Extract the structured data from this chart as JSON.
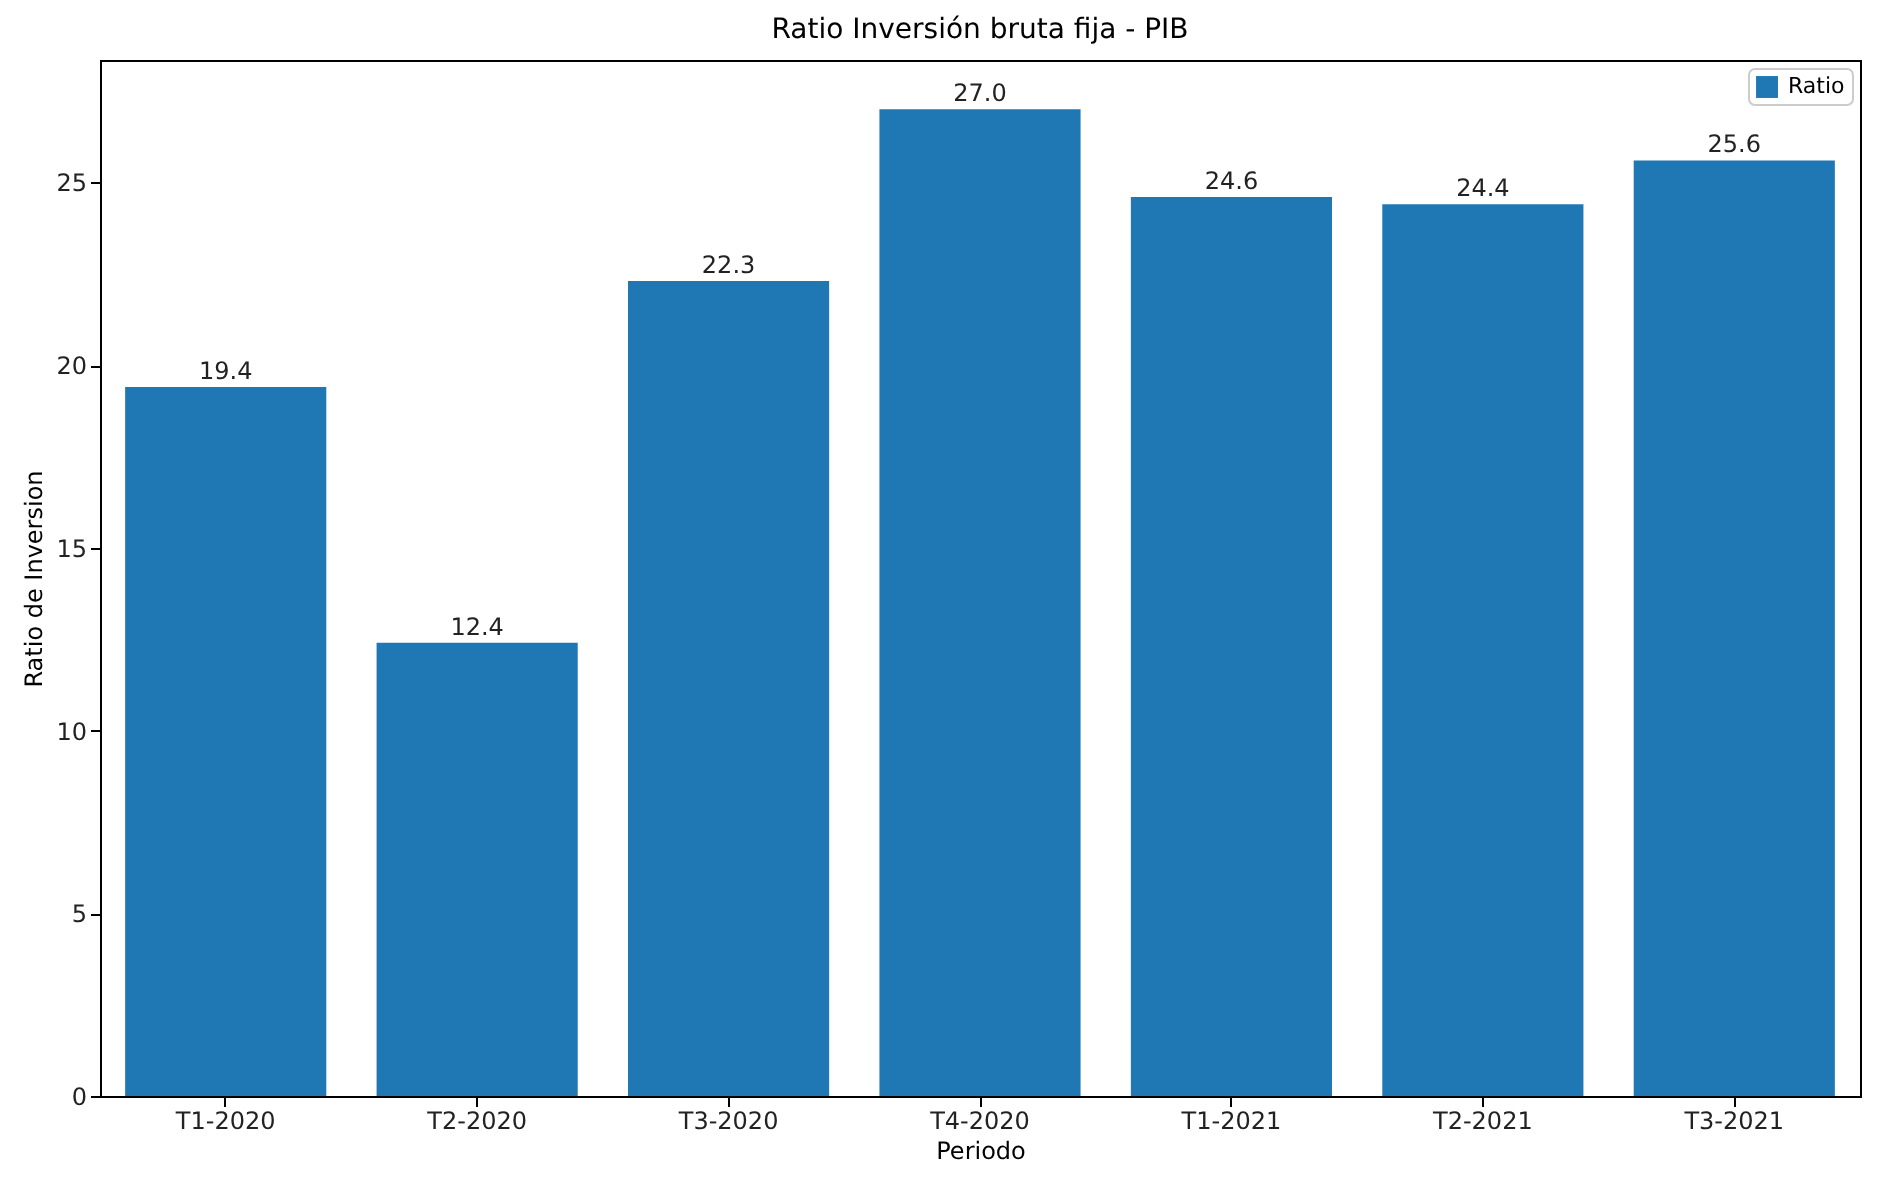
{
  "chart_data": {
    "type": "bar",
    "title": "Ratio Inversión bruta fija - PIB",
    "xlabel": "Periodo",
    "ylabel": "Ratio de Inversion",
    "categories": [
      "T1-2020",
      "T2-2020",
      "T3-2020",
      "T4-2020",
      "T1-2021",
      "T2-2021",
      "T3-2021"
    ],
    "series": [
      {
        "name": "Ratio",
        "color": "#1f77b4",
        "values": [
          19.4,
          12.4,
          22.3,
          27.0,
          24.6,
          24.4,
          25.6
        ],
        "value_labels": [
          "19.4",
          "12.4",
          "22.3",
          "27.0",
          "24.6",
          "24.4",
          "25.6"
        ]
      }
    ],
    "ylim": [
      0,
      28.35
    ],
    "yticks": [
      0,
      5,
      10,
      15,
      20,
      25
    ],
    "grid": false,
    "legend": "top right"
  }
}
